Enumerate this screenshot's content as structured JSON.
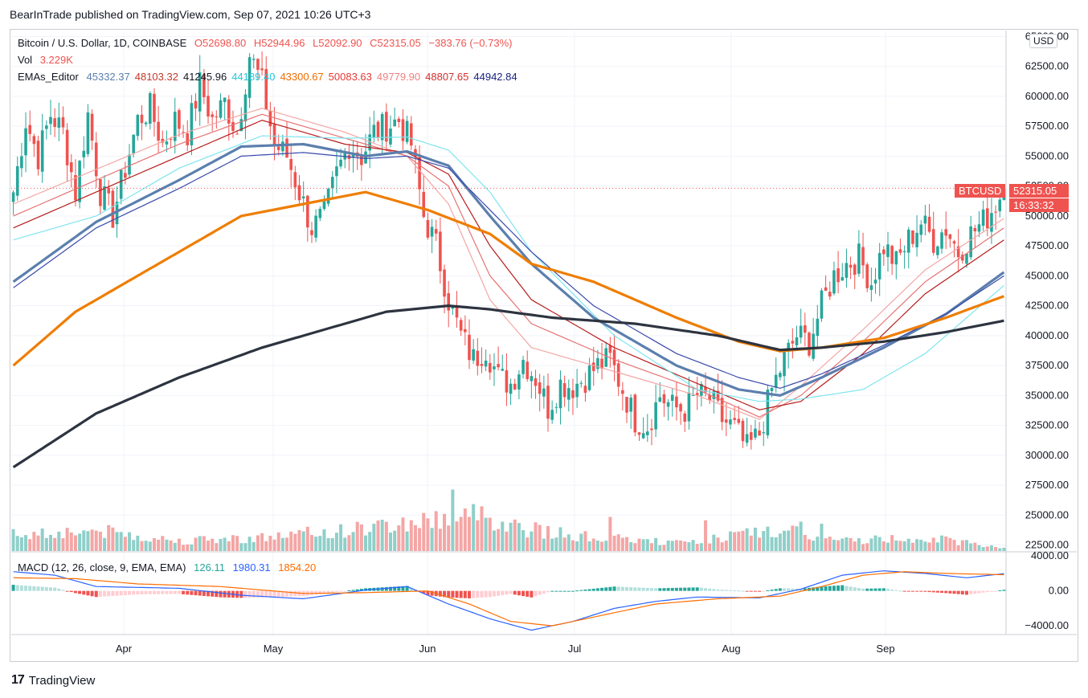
{
  "header": {
    "text": "BearInTrade published on TradingView.com, Sep 07, 2021 10:26 UTC+3"
  },
  "legend": {
    "main": {
      "name": "Bitcoin / U.S. Dollar, 1D, COINBASE",
      "open": "O52698.80",
      "high": "H52944.96",
      "low": "L52092.90",
      "close": "C52315.05",
      "change": "−383.76 (−0.73%)"
    },
    "vol": {
      "name": "Vol",
      "value": "3.229K"
    },
    "emas": {
      "name": "EMAs_Editor",
      "values": [
        "45332.37",
        "48103.32",
        "41245.96",
        "44189.40",
        "43300.67",
        "50083.63",
        "49779.90",
        "48807.65",
        "44942.84"
      ],
      "colors": [
        "#5b7fae",
        "#c0392b",
        "#131722",
        "#26c6da",
        "#ef6c00",
        "#e53935",
        "#f08080",
        "#d32f2f",
        "#1a237e"
      ]
    },
    "macd": {
      "name": "MACD (12, 26, close, 9, EMA, EMA)",
      "hist": "126.11",
      "macd": "1980.31",
      "signal": "1854.20"
    }
  },
  "price_tag": {
    "symbol": "BTCUSD",
    "price": "52315.05",
    "countdown": "16:33:32"
  },
  "currency_button": "USD",
  "footer": {
    "brand": "TradingView",
    "logo": "17"
  },
  "colors": {
    "up": "#26a69a",
    "down": "#ef5350",
    "vol_up": "#8fcfc9",
    "vol_down": "#f4a6a5",
    "macd_line": "#2962ff",
    "signal_line": "#ff6d00"
  },
  "chart_data": {
    "type": "candlestick",
    "x_tick_labels": [
      "Apr",
      "May",
      "Jun",
      "Jul",
      "Aug",
      "Sep"
    ],
    "y_tick_labels": [
      "65000.00",
      "62500.00",
      "60000.00",
      "57500.00",
      "55000.00",
      "52500.00",
      "50000.00",
      "47500.00",
      "45000.00",
      "42500.00",
      "40000.00",
      "37500.00",
      "35000.00",
      "32500.00",
      "30000.00",
      "27500.00",
      "25000.00",
      "22500.00"
    ],
    "y_range": [
      22000,
      65500
    ],
    "macd_tick_labels": [
      "4000.00",
      "0.00",
      "−4000.00"
    ],
    "macd_range": [
      -5000,
      4200
    ],
    "close_path": [
      [
        0,
        52000
      ],
      [
        3,
        58000
      ],
      [
        6,
        55000
      ],
      [
        9,
        58500
      ],
      [
        12,
        57000
      ],
      [
        15,
        52000
      ],
      [
        18,
        58500
      ],
      [
        21,
        52000
      ],
      [
        24,
        50000
      ],
      [
        27,
        54000
      ],
      [
        30,
        58000
      ],
      [
        33,
        59000
      ],
      [
        36,
        56000
      ],
      [
        39,
        58000
      ],
      [
        42,
        57000
      ],
      [
        45,
        61000
      ],
      [
        48,
        58000
      ],
      [
        51,
        59500
      ],
      [
        54,
        57000
      ],
      [
        57,
        63500
      ],
      [
        60,
        61000
      ],
      [
        63,
        56000
      ],
      [
        66,
        55000
      ],
      [
        69,
        52000
      ],
      [
        72,
        49000
      ],
      [
        75,
        50000
      ],
      [
        78,
        53500
      ],
      [
        81,
        56000
      ],
      [
        84,
        55000
      ],
      [
        87,
        57000
      ],
      [
        90,
        57500
      ],
      [
        93,
        58000
      ],
      [
        96,
        56000
      ],
      [
        99,
        50000
      ],
      [
        102,
        47500
      ],
      [
        105,
        43000
      ],
      [
        108,
        40000
      ],
      [
        111,
        38000
      ],
      [
        114,
        39000
      ],
      [
        117,
        36500
      ],
      [
        120,
        36000
      ],
      [
        123,
        38000
      ],
      [
        126,
        36500
      ],
      [
        129,
        34000
      ],
      [
        132,
        36000
      ],
      [
        135,
        35800
      ],
      [
        138,
        36500
      ],
      [
        141,
        37500
      ],
      [
        144,
        38000
      ],
      [
        147,
        35500
      ],
      [
        150,
        33000
      ],
      [
        153,
        32500
      ],
      [
        156,
        35000
      ],
      [
        159,
        34000
      ],
      [
        162,
        33800
      ],
      [
        165,
        35000
      ],
      [
        168,
        34700
      ],
      [
        171,
        33000
      ],
      [
        174,
        32200
      ],
      [
        177,
        30500
      ],
      [
        180,
        31800
      ],
      [
        183,
        35500
      ],
      [
        186,
        38000
      ],
      [
        189,
        40000
      ],
      [
        192,
        39500
      ],
      [
        195,
        42500
      ],
      [
        198,
        45000
      ],
      [
        201,
        46000
      ],
      [
        204,
        46500
      ],
      [
        207,
        44500
      ],
      [
        210,
        47500
      ],
      [
        213,
        46000
      ],
      [
        216,
        48000
      ],
      [
        219,
        49500
      ],
      [
        222,
        48000
      ],
      [
        225,
        49000
      ],
      [
        228,
        47000
      ],
      [
        231,
        48500
      ],
      [
        234,
        49500
      ],
      [
        237,
        51000
      ],
      [
        239,
        52315
      ]
    ],
    "volume_profile": [
      [
        0,
        0.25
      ],
      [
        20,
        0.3
      ],
      [
        40,
        0.15
      ],
      [
        60,
        0.2
      ],
      [
        80,
        0.3
      ],
      [
        100,
        0.45
      ],
      [
        110,
        0.55
      ],
      [
        115,
        0.5
      ],
      [
        125,
        0.3
      ],
      [
        140,
        0.2
      ],
      [
        160,
        0.12
      ],
      [
        170,
        0.2
      ],
      [
        185,
        0.3
      ],
      [
        200,
        0.15
      ],
      [
        220,
        0.2
      ],
      [
        239,
        0.05
      ]
    ],
    "volume_spikes": [
      {
        "i": 106,
        "v": 0.9
      },
      {
        "i": 108,
        "v": 0.5
      },
      {
        "i": 110,
        "v": 0.5
      },
      {
        "i": 112,
        "v": 0.45
      },
      {
        "i": 126,
        "v": 0.42
      },
      {
        "i": 144,
        "v": 0.5
      },
      {
        "i": 167,
        "v": 0.45
      },
      {
        "i": 190,
        "v": 0.43
      },
      {
        "i": 195,
        "v": 0.4
      }
    ],
    "emas": [
      {
        "name": "EMA1",
        "values": [
          [
            0,
            51000
          ],
          [
            40,
            56800
          ],
          [
            60,
            59000
          ],
          [
            80,
            57000
          ],
          [
            95,
            55000
          ],
          [
            105,
            51000
          ],
          [
            115,
            43000
          ],
          [
            125,
            39000
          ],
          [
            145,
            37000
          ],
          [
            165,
            35000
          ],
          [
            180,
            33000
          ],
          [
            190,
            35800
          ],
          [
            205,
            40500
          ],
          [
            220,
            45500
          ],
          [
            239,
            49800
          ]
        ]
      },
      {
        "name": "EMA2",
        "values": [
          [
            0,
            50000
          ],
          [
            40,
            56000
          ],
          [
            60,
            58500
          ],
          [
            80,
            56500
          ],
          [
            95,
            55000
          ],
          [
            105,
            52500
          ],
          [
            115,
            45000
          ],
          [
            125,
            41000
          ],
          [
            145,
            38000
          ],
          [
            165,
            35500
          ],
          [
            180,
            33200
          ],
          [
            190,
            35000
          ],
          [
            205,
            39500
          ],
          [
            220,
            44500
          ],
          [
            239,
            49000
          ]
        ]
      },
      {
        "name": "EMA3",
        "values": [
          [
            0,
            49000
          ],
          [
            40,
            55000
          ],
          [
            60,
            58000
          ],
          [
            80,
            56000
          ],
          [
            95,
            55300
          ],
          [
            105,
            53500
          ],
          [
            115,
            47500
          ],
          [
            125,
            43000
          ],
          [
            145,
            39000
          ],
          [
            165,
            36000
          ],
          [
            180,
            33800
          ],
          [
            190,
            34500
          ],
          [
            205,
            38500
          ],
          [
            220,
            43500
          ],
          [
            239,
            48000
          ]
        ]
      },
      {
        "name": "EMA4",
        "values": [
          [
            0,
            48000
          ],
          [
            20,
            50000
          ],
          [
            40,
            54000
          ],
          [
            60,
            56700
          ],
          [
            80,
            56500
          ],
          [
            95,
            56600
          ],
          [
            105,
            55500
          ],
          [
            115,
            52000
          ],
          [
            125,
            47000
          ],
          [
            145,
            40000
          ],
          [
            165,
            35500
          ],
          [
            180,
            34500
          ],
          [
            190,
            34700
          ],
          [
            205,
            35500
          ],
          [
            220,
            38500
          ],
          [
            239,
            44200
          ]
        ]
      },
      {
        "name": "EMA5",
        "values": [
          [
            0,
            44500
          ],
          [
            20,
            49500
          ],
          [
            40,
            53000
          ],
          [
            55,
            55800
          ],
          [
            70,
            56000
          ],
          [
            85,
            55000
          ],
          [
            95,
            55400
          ],
          [
            105,
            54200
          ],
          [
            115,
            50000
          ],
          [
            125,
            46000
          ],
          [
            140,
            41500
          ],
          [
            160,
            37500
          ],
          [
            175,
            35500
          ],
          [
            185,
            35000
          ],
          [
            195,
            36500
          ],
          [
            210,
            39000
          ],
          [
            225,
            41800
          ],
          [
            239,
            45300
          ]
        ]
      },
      {
        "name": "EMA6",
        "values": [
          [
            0,
            44000
          ],
          [
            20,
            49000
          ],
          [
            40,
            52300
          ],
          [
            55,
            55000
          ],
          [
            70,
            55300
          ],
          [
            85,
            54800
          ],
          [
            95,
            55000
          ],
          [
            105,
            54000
          ],
          [
            115,
            50500
          ],
          [
            125,
            47000
          ],
          [
            140,
            42500
          ],
          [
            160,
            38500
          ],
          [
            175,
            36500
          ],
          [
            185,
            35600
          ],
          [
            195,
            36800
          ],
          [
            210,
            39200
          ],
          [
            225,
            41800
          ],
          [
            239,
            45000
          ]
        ]
      },
      {
        "name": "EMA50",
        "values": [
          [
            0,
            37500
          ],
          [
            15,
            42000
          ],
          [
            30,
            45000
          ],
          [
            45,
            48000
          ],
          [
            55,
            50000
          ],
          [
            70,
            51000
          ],
          [
            85,
            52000
          ],
          [
            100,
            50500
          ],
          [
            115,
            48500
          ],
          [
            125,
            46000
          ],
          [
            140,
            44500
          ],
          [
            160,
            41500
          ],
          [
            175,
            39500
          ],
          [
            185,
            38700
          ],
          [
            195,
            39000
          ],
          [
            210,
            39800
          ],
          [
            225,
            41500
          ],
          [
            239,
            43300
          ]
        ]
      },
      {
        "name": "EMA200",
        "values": [
          [
            0,
            29000
          ],
          [
            20,
            33500
          ],
          [
            40,
            36500
          ],
          [
            60,
            39000
          ],
          [
            75,
            40500
          ],
          [
            90,
            42000
          ],
          [
            105,
            42500
          ],
          [
            115,
            42200
          ],
          [
            130,
            41500
          ],
          [
            150,
            41000
          ],
          [
            170,
            40000
          ],
          [
            185,
            38800
          ],
          [
            195,
            39000
          ],
          [
            210,
            39500
          ],
          [
            225,
            40300
          ],
          [
            239,
            41250
          ]
        ]
      }
    ],
    "macd": {
      "macd_line": [
        [
          0,
          2200
        ],
        [
          10,
          1800
        ],
        [
          20,
          500
        ],
        [
          40,
          300
        ],
        [
          55,
          -500
        ],
        [
          70,
          -900
        ],
        [
          85,
          100
        ],
        [
          95,
          500
        ],
        [
          105,
          -1500
        ],
        [
          115,
          -3200
        ],
        [
          125,
          -4500
        ],
        [
          135,
          -3500
        ],
        [
          145,
          -2000
        ],
        [
          155,
          -1200
        ],
        [
          165,
          -700
        ],
        [
          180,
          -800
        ],
        [
          190,
          200
        ],
        [
          200,
          1800
        ],
        [
          210,
          2300
        ],
        [
          220,
          2000
        ],
        [
          230,
          1500
        ],
        [
          239,
          1980
        ]
      ],
      "signal_line": [
        [
          0,
          1500
        ],
        [
          15,
          1400
        ],
        [
          30,
          800
        ],
        [
          50,
          500
        ],
        [
          70,
          -300
        ],
        [
          85,
          -200
        ],
        [
          100,
          0
        ],
        [
          110,
          -1500
        ],
        [
          120,
          -3500
        ],
        [
          130,
          -4000
        ],
        [
          140,
          -3000
        ],
        [
          155,
          -1500
        ],
        [
          170,
          -900
        ],
        [
          185,
          -600
        ],
        [
          195,
          500
        ],
        [
          205,
          1800
        ],
        [
          215,
          2200
        ],
        [
          225,
          2000
        ],
        [
          239,
          1854
        ]
      ]
    }
  }
}
